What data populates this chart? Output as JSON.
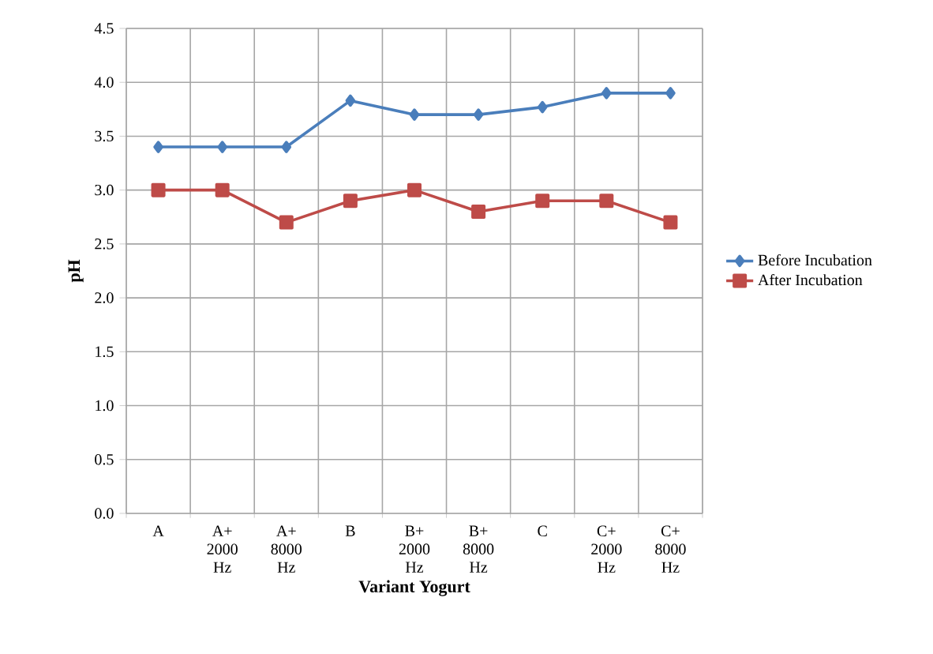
{
  "chart_data": {
    "type": "line",
    "xlabel": "Variant Yogurt",
    "ylabel": "pH",
    "categories": [
      "A",
      "A+ 2000 Hz",
      "A+ 8000 Hz",
      "B",
      "B+ 2000 Hz",
      "B+ 8000 Hz",
      "C",
      "C+ 2000 Hz",
      "C+ 8000 Hz"
    ],
    "series": [
      {
        "name": "Before Incubation",
        "color": "#4a7ebb",
        "marker": "diamond",
        "values": [
          3.4,
          3.4,
          3.4,
          3.83,
          3.7,
          3.7,
          3.77,
          3.9,
          3.9
        ]
      },
      {
        "name": "After Incubation",
        "color": "#be4b48",
        "marker": "square",
        "values": [
          3.0,
          3.0,
          2.7,
          2.9,
          3.0,
          2.8,
          2.9,
          2.9,
          2.7
        ]
      }
    ],
    "ylim": [
      0,
      4.5
    ],
    "yticks": [
      {
        "value": 0,
        "label": "0.0"
      },
      {
        "value": 0.5,
        "label": "0.5"
      },
      {
        "value": 1,
        "label": "1.0"
      },
      {
        "value": 1.5,
        "label": "1.5"
      },
      {
        "value": 2,
        "label": "2.0"
      },
      {
        "value": 2.5,
        "label": "2.5"
      },
      {
        "value": 3,
        "label": "3.0"
      },
      {
        "value": 3.5,
        "label": "3.5"
      },
      {
        "value": 4,
        "label": "4.0"
      },
      {
        "value": 4.5,
        "label": "4.5"
      }
    ],
    "grid": true,
    "legend": "right",
    "line_style": "solid"
  }
}
